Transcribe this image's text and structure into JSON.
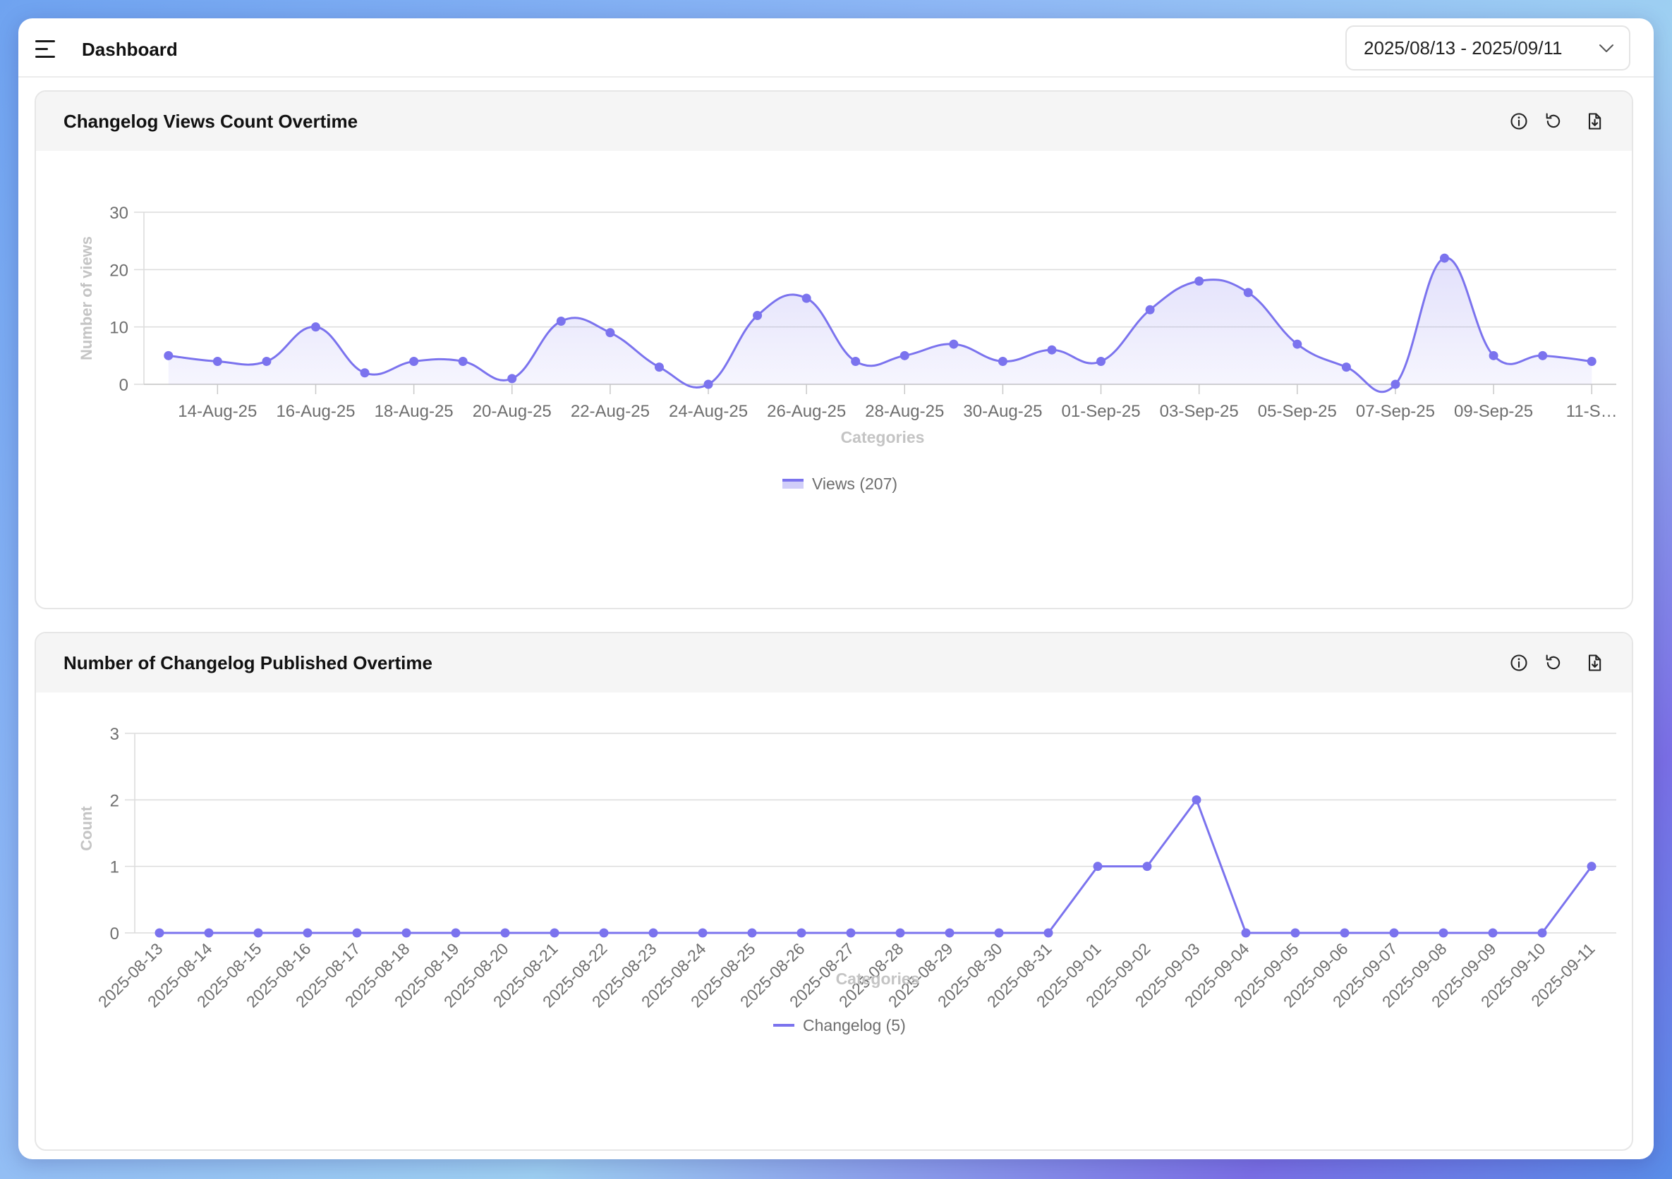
{
  "header": {
    "title": "Dashboard",
    "date_range": "2025/08/13 - 2025/09/11"
  },
  "colors": {
    "series": "#7b73ee",
    "grid": "#dcdcdc",
    "tick_text": "#6e6e6e",
    "axis_title": "#c4c4c4"
  },
  "chart_data": [
    {
      "type": "area",
      "title": "Changelog Views Count Overtime",
      "xlabel": "Categories",
      "ylabel": "Number of views",
      "ylim": [
        0,
        30
      ],
      "yticks": [
        "0",
        "10",
        "20",
        "30"
      ],
      "x": [
        "13-Aug-25",
        "14-Aug-25",
        "15-Aug-25",
        "16-Aug-25",
        "17-Aug-25",
        "18-Aug-25",
        "19-Aug-25",
        "20-Aug-25",
        "21-Aug-25",
        "22-Aug-25",
        "23-Aug-25",
        "24-Aug-25",
        "25-Aug-25",
        "26-Aug-25",
        "27-Aug-25",
        "28-Aug-25",
        "29-Aug-25",
        "30-Aug-25",
        "31-Aug-25",
        "01-Sep-25",
        "02-Sep-25",
        "03-Sep-25",
        "04-Sep-25",
        "05-Sep-25",
        "06-Sep-25",
        "07-Sep-25",
        "08-Sep-25",
        "09-Sep-25",
        "10-Sep-25",
        "11-Sep-25"
      ],
      "tick_labels": [
        "14-Aug-25",
        "16-Aug-25",
        "18-Aug-25",
        "20-Aug-25",
        "22-Aug-25",
        "24-Aug-25",
        "26-Aug-25",
        "28-Aug-25",
        "30-Aug-25",
        "01-Sep-25",
        "03-Sep-25",
        "05-Sep-25",
        "07-Sep-25",
        "09-Sep-25",
        "11-S…"
      ],
      "series": [
        {
          "name": "Views",
          "legend": "Views (207)",
          "values": [
            5,
            4,
            4,
            10,
            2,
            4,
            4,
            1,
            11,
            9,
            3,
            0,
            12,
            15,
            4,
            5,
            7,
            4,
            6,
            4,
            13,
            18,
            16,
            7,
            3,
            0,
            22,
            5,
            5,
            4
          ]
        }
      ],
      "grid": true,
      "legend_position": "bottom-center"
    },
    {
      "type": "line",
      "title": "Number of Changelog Published Overtime",
      "xlabel": "Categories",
      "ylabel": "Count",
      "ylim": [
        0,
        3
      ],
      "yticks": [
        "0",
        "1",
        "2",
        "3"
      ],
      "x": [
        "2025-08-13",
        "2025-08-14",
        "2025-08-15",
        "2025-08-16",
        "2025-08-17",
        "2025-08-18",
        "2025-08-19",
        "2025-08-20",
        "2025-08-21",
        "2025-08-22",
        "2025-08-23",
        "2025-08-24",
        "2025-08-25",
        "2025-08-26",
        "2025-08-27",
        "2025-08-28",
        "2025-08-29",
        "2025-08-30",
        "2025-08-31",
        "2025-09-01",
        "2025-09-02",
        "2025-09-03",
        "2025-09-04",
        "2025-09-05",
        "2025-09-06",
        "2025-09-07",
        "2025-09-08",
        "2025-09-09",
        "2025-09-10",
        "2025-09-11"
      ],
      "series": [
        {
          "name": "Changelog",
          "legend": "Changelog (5)",
          "values": [
            0,
            0,
            0,
            0,
            0,
            0,
            0,
            0,
            0,
            0,
            0,
            0,
            0,
            0,
            0,
            0,
            0,
            0,
            0,
            1,
            1,
            2,
            0,
            0,
            0,
            0,
            0,
            0,
            0,
            1
          ]
        }
      ],
      "grid": true,
      "legend_position": "bottom-center"
    }
  ]
}
